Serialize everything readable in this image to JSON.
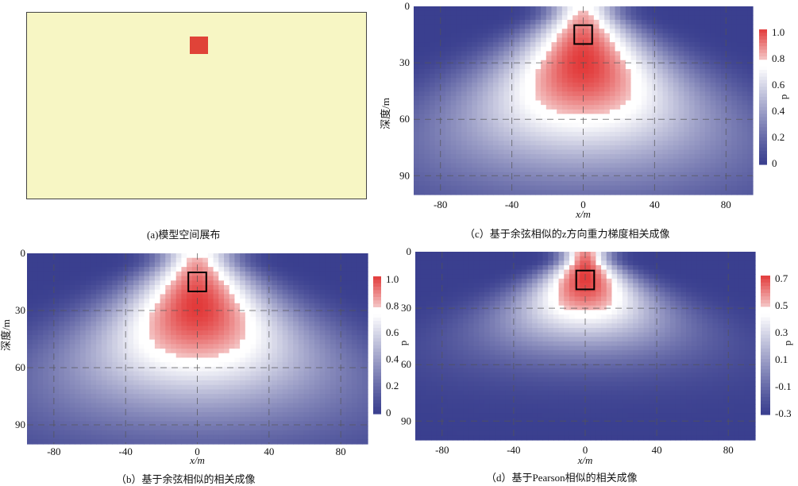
{
  "panel_a": {
    "caption": "(a)模型空间展布",
    "background_color": "#f7f6c4",
    "anomaly_color": "#e04338"
  },
  "chart_data": [
    {
      "id": "c",
      "type": "heatmap",
      "caption": "（c）基于余弦相似的z方向重力梯度相关成像",
      "xlabel": "x/m",
      "ylabel": "深度/m",
      "x_ticks": [
        "-80",
        "-40",
        "0",
        "40",
        "80"
      ],
      "y_ticks": [
        "0",
        "30",
        "60",
        "90"
      ],
      "xlim": [
        -95,
        95
      ],
      "ylim": [
        0,
        100
      ],
      "colorbar_label": "p",
      "colorbar_ticks": [
        "1.0",
        "0.8",
        "0.6",
        "0.4",
        "0.2",
        "0"
      ],
      "colorbar_range": [
        0,
        1.05
      ],
      "colors": {
        "low": "#3a3f8f",
        "mid": "#ffffff",
        "high": "#e23a3a"
      },
      "grid": "dashed",
      "source_box": {
        "x": [
          -5,
          5
        ],
        "depth": [
          10,
          20
        ]
      },
      "field": {
        "depth_center": 30,
        "half_width": 10,
        "depth_scale": 0.55,
        "peak": 1.05
      }
    },
    {
      "id": "b",
      "type": "heatmap",
      "caption": "（b）基于余弦相似的相关成像",
      "xlabel": "x/m",
      "ylabel": "深度/m",
      "x_ticks": [
        "-80",
        "-40",
        "0",
        "40",
        "80"
      ],
      "y_ticks": [
        "0",
        "30",
        "60",
        "90"
      ],
      "xlim": [
        -95,
        95
      ],
      "ylim": [
        0,
        100
      ],
      "colorbar_label": "p",
      "colorbar_ticks": [
        "1.0",
        "0.8",
        "0.6",
        "0.4",
        "0.2",
        "0"
      ],
      "colorbar_range": [
        0,
        1.05
      ],
      "colors": {
        "low": "#3a3f8f",
        "mid": "#ffffff",
        "high": "#e23a3a"
      },
      "grid": "dashed",
      "source_box": {
        "x": [
          -5,
          5
        ],
        "depth": [
          10,
          20
        ]
      },
      "field": {
        "depth_center": 28,
        "half_width": 11,
        "depth_scale": 0.5,
        "peak": 1.05
      }
    },
    {
      "id": "d",
      "type": "heatmap",
      "caption": "（d）基于Pearson相似的相关成像",
      "xlabel": "x/m",
      "ylabel": "",
      "x_ticks": [
        "-80",
        "-40",
        "0",
        "40",
        "80"
      ],
      "y_ticks": [
        "0",
        "30",
        "60",
        "90"
      ],
      "xlim": [
        -95,
        95
      ],
      "ylim": [
        0,
        100
      ],
      "colorbar_label": "p",
      "colorbar_ticks": [
        "0.7",
        "0.5",
        "0.3",
        "0.1",
        "-0.1",
        "-0.3"
      ],
      "colorbar_range": [
        -0.35,
        0.9
      ],
      "colors": {
        "low": "#3a3f8f",
        "mid": "#ffffff",
        "high": "#e23a3a"
      },
      "grid": "dashed",
      "source_box": {
        "x": [
          -5,
          5
        ],
        "depth": [
          10,
          20
        ]
      },
      "field": {
        "depth_center": 14,
        "half_width": 7,
        "depth_scale": 0.9,
        "peak": 0.9
      }
    }
  ]
}
